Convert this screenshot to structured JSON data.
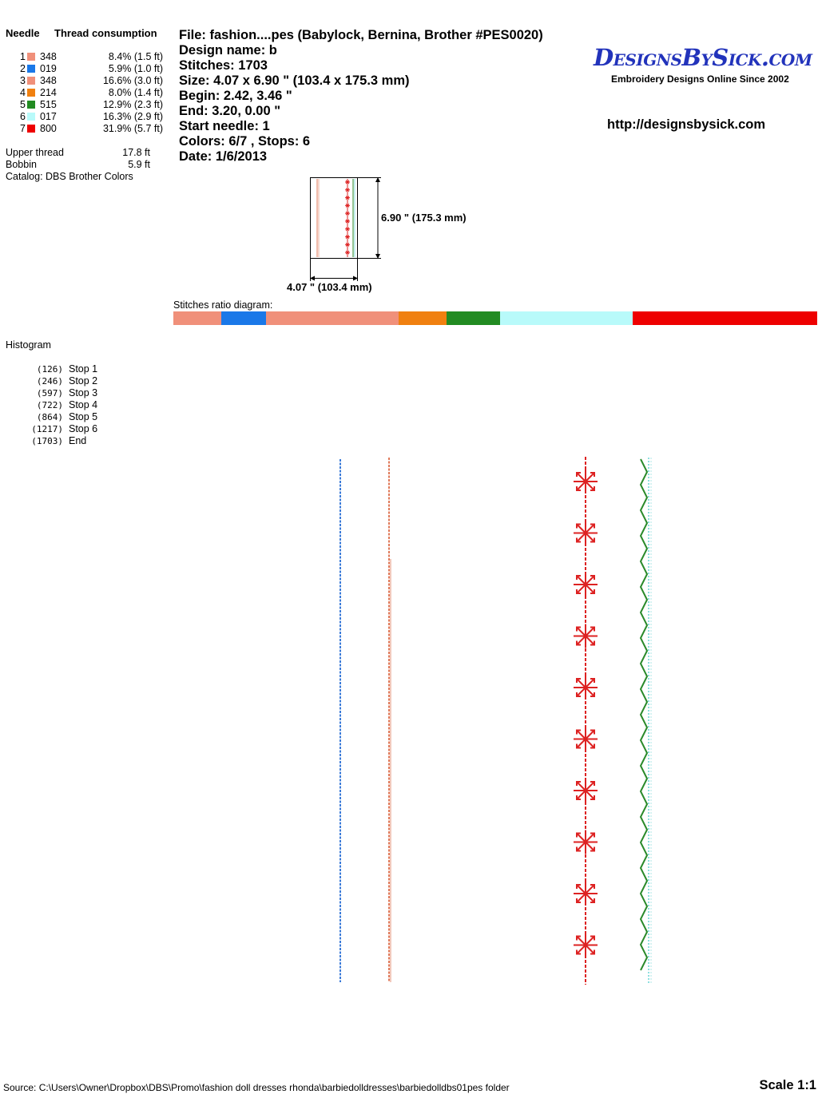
{
  "needle_panel": {
    "header_needle": "Needle",
    "header_consumption": "Thread consumption",
    "rows": [
      {
        "num": "1",
        "code": "348",
        "consumption": "8.4% (1.5 ft)",
        "color": "#f0907a"
      },
      {
        "num": "2",
        "code": "019",
        "consumption": "5.9% (1.0 ft)",
        "color": "#1a78e8"
      },
      {
        "num": "3",
        "code": "348",
        "consumption": "16.6% (3.0 ft)",
        "color": "#f0907a"
      },
      {
        "num": "4",
        "code": "214",
        "consumption": "8.0% (1.4 ft)",
        "color": "#f08010"
      },
      {
        "num": "5",
        "code": "515",
        "consumption": "12.9% (2.3 ft)",
        "color": "#228b22"
      },
      {
        "num": "6",
        "code": "017",
        "consumption": "16.3% (2.9 ft)",
        "color": "#b8fafa"
      },
      {
        "num": "7",
        "code": "800",
        "consumption": "31.9% (5.7 ft)",
        "color": "#ee0000"
      }
    ],
    "upper_thread_label": "Upper thread",
    "upper_thread_value": "17.8 ft",
    "bobbin_label": "Bobbin",
    "bobbin_value": "5.9 ft",
    "catalog": "Catalog: DBS Brother Colors"
  },
  "info": {
    "file": "File: fashion....pes  (Babylock, Bernina, Brother #PES0020)",
    "design_name": "Design name: b",
    "stitches": "Stitches: 1703",
    "size": "Size: 4.07 x 6.90 \" (103.4 x 175.3 mm)",
    "begin": "Begin: 2.42, 3.46 \"",
    "end": "End: 3.20, 0.00 \"",
    "start_needle": "Start needle: 1",
    "colors_stops": "Colors: 6/7 , Stops: 6",
    "date": "Date: 1/6/2013"
  },
  "logo": {
    "text": "DesignsBySick.com",
    "tagline": "Embroidery Designs Online Since 2002",
    "url": "http://designsbysick.com",
    "color": "#2233bb"
  },
  "thumbnail": {
    "height_label": "6.90 \" (175.3 mm)",
    "width_label": "4.07 \" (103.4 mm)"
  },
  "ratio": {
    "label": "Stitches ratio diagram:",
    "segments": [
      {
        "color": "#f0907a",
        "fraction": 0.074
      },
      {
        "color": "#1a78e8",
        "fraction": 0.07
      },
      {
        "color": "#f0907a",
        "fraction": 0.206
      },
      {
        "color": "#f08010",
        "fraction": 0.074
      },
      {
        "color": "#228b22",
        "fraction": 0.083
      },
      {
        "color": "#b8fafa",
        "fraction": 0.207
      },
      {
        "color": "#ee0000",
        "fraction": 0.286
      }
    ]
  },
  "histogram": {
    "title": "Histogram",
    "rows": [
      {
        "count": "(126)",
        "label": "Stop 1"
      },
      {
        "count": "(246)",
        "label": "Stop 2"
      },
      {
        "count": "(597)",
        "label": "Stop 3"
      },
      {
        "count": "(722)",
        "label": "Stop 4"
      },
      {
        "count": "(864)",
        "label": "Stop 5"
      },
      {
        "count": "(1217)",
        "label": "Stop 6"
      },
      {
        "count": "(1703)",
        "label": "End"
      }
    ]
  },
  "design_colors": {
    "blue": "#3a7ad8",
    "salmon": "#e07a5a",
    "red": "#dd2222",
    "green": "#2a8a2a",
    "cyan": "#8ee0e0"
  },
  "footer": {
    "source": "Source: C:\\Users\\Owner\\Dropbox\\DBS\\Promo\\fashion doll dresses  rhonda\\barbiedolldresses\\barbiedolldbs01pes folder",
    "scale": "Scale 1:1"
  }
}
